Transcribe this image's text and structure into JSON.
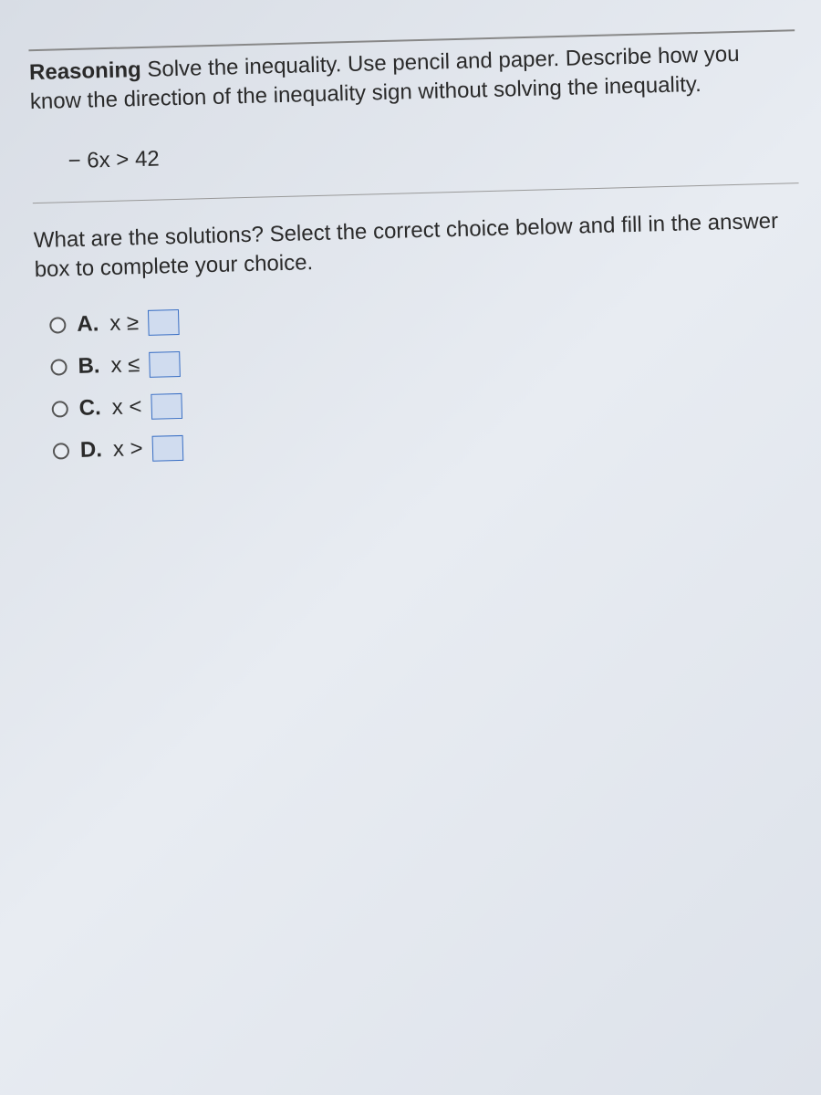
{
  "header": {
    "bold_label": "Reasoning",
    "instruction_text": " Solve the inequality. Use pencil and paper. Describe how you know the direction of the inequality sign without solving the inequality."
  },
  "inequality": "− 6x > 42",
  "question": "What are the solutions? Select the correct choice below and fill in the answer box to complete your choice.",
  "options": [
    {
      "letter": "A.",
      "expr": "x ≥"
    },
    {
      "letter": "B.",
      "expr": "x ≤"
    },
    {
      "letter": "C.",
      "expr": "x <"
    },
    {
      "letter": "D.",
      "expr": "x >"
    }
  ],
  "colors": {
    "text": "#2a2a2a",
    "box_border": "#3a6fc4",
    "box_fill": "#d0dcef",
    "radio_border": "#555",
    "divider": "#999"
  },
  "typography": {
    "body_fontsize": 24,
    "font_family": "Arial"
  }
}
